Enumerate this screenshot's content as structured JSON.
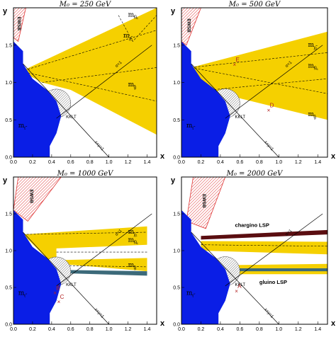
{
  "colors": {
    "stau": "#0a1ee6",
    "gaugino_band": "#f5d000",
    "ewsb_hatch": "#e03a3a",
    "frame": "#000000",
    "dark_band": "#5a0d10",
    "teal_band": "#3c6a7a",
    "marker": "#b22222"
  },
  "chart_data": [
    {
      "type": "area",
      "title": "M₀ = 250 GeV",
      "xlabel": "x",
      "ylabel": "y",
      "xlim": [
        0,
        1.5
      ],
      "ylim": [
        0,
        2
      ],
      "xticks": [
        "0.0",
        "0.2",
        "0.4",
        "0.6",
        "0.8",
        "1.0",
        "1.2",
        "1.4"
      ],
      "yticks": [
        "0.0",
        "0.5",
        "1.0",
        "1.5"
      ],
      "regions": [
        "EWSB",
        "m_τ̃",
        "m_χ̃₁",
        "m_Ñ₁",
        "m_g̃"
      ],
      "labels": {
        "ewsb": "EWSB",
        "stau": "m",
        "stau_sub": "τ̃",
        "chi": "m",
        "chi_sub": "χ̃₁",
        "n1": "m",
        "n1_sub": "Ñ₁",
        "gluino": "m",
        "gluino_sub": "g̃",
        "kklt": "KKLT",
        "alpha": "α=1",
        "line": "x+y=1"
      }
    },
    {
      "type": "area",
      "title": "M₀ = 500 GeV",
      "xlabel": "x",
      "ylabel": "y",
      "xlim": [
        0,
        1.5
      ],
      "ylim": [
        0,
        2
      ],
      "xticks": [
        "0.0",
        "0.2",
        "0.4",
        "0.6",
        "0.8",
        "1.0",
        "1.2",
        "1.4"
      ],
      "yticks": [
        "0.0",
        "0.5",
        "1.0",
        "1.5"
      ],
      "points": [
        {
          "name": "E",
          "x": 0.55,
          "y": 1.24
        },
        {
          "name": "D",
          "x": 0.9,
          "y": 0.63
        }
      ],
      "labels": {
        "ewsb": "EWSB",
        "stau": "m",
        "stau_sub": "τ̃",
        "chi": "m",
        "chi_sub": "χ̃₁",
        "n1": "m",
        "n1_sub": "Ñ₁",
        "gluino": "m",
        "gluino_sub": "g̃",
        "kklt": "KKLT",
        "alpha": "α=1",
        "line": "x+y=1",
        "E": "E",
        "D": "D"
      }
    },
    {
      "type": "area",
      "title": "M₀ = 1000 GeV",
      "xlabel": "x",
      "ylabel": "y",
      "xlim": [
        0,
        1.5
      ],
      "ylim": [
        0,
        2
      ],
      "xticks": [
        "0.0",
        "0.2",
        "0.4",
        "0.6",
        "0.8",
        "1.0",
        "1.2",
        "1.4"
      ],
      "yticks": [
        "0.0",
        "0.5",
        "1.0",
        "1.5"
      ],
      "points": [
        {
          "name": "B",
          "x": 0.44,
          "y": 0.43
        },
        {
          "name": "C",
          "x": 0.48,
          "y": 0.31
        }
      ],
      "labels": {
        "ewsb": "EWSB",
        "stau": "m",
        "stau_sub": "τ̃",
        "chi": "m",
        "chi_sub": "χ̃₁",
        "n1": "m",
        "n1_sub": "Ñ₁",
        "gluino": "m",
        "gluino_sub": "g̃",
        "kklt": "KKLT",
        "alpha": "α=1",
        "line": "x+y=1",
        "B": "B",
        "C": "C"
      }
    },
    {
      "type": "area",
      "title": "M₀ = 2000 GeV",
      "xlabel": "x",
      "ylabel": "y",
      "xlim": [
        0,
        1.5
      ],
      "ylim": [
        0,
        2
      ],
      "xticks": [
        "0.0",
        "0.2",
        "0.4",
        "0.6",
        "0.8",
        "1.0",
        "1.2",
        "1.4"
      ],
      "yticks": [
        "0.0",
        "0.5",
        "1.0",
        "1.5"
      ],
      "points": [
        {
          "name": "A",
          "x": 0.57,
          "y": 0.45
        }
      ],
      "labels": {
        "ewsb": "EWSB",
        "stau": "m",
        "stau_sub": "τ̃",
        "kklt": "KKLT",
        "alpha": "α=1",
        "line": "x+y=1",
        "A": "A",
        "chargino": "chargino LSP",
        "gluino_lsp": "gluino LSP"
      }
    }
  ]
}
